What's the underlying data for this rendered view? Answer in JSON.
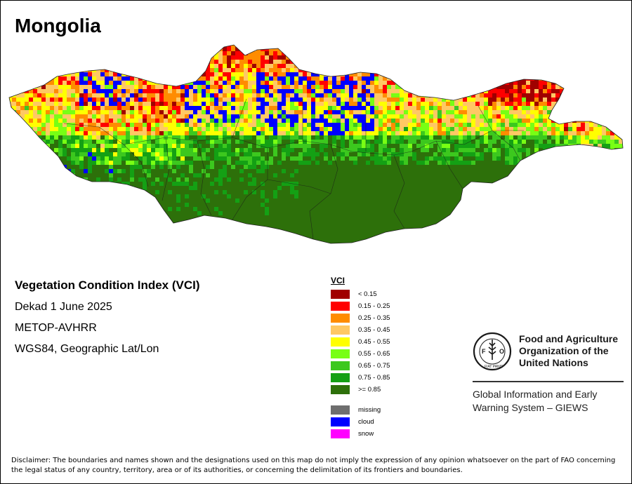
{
  "map": {
    "title": "Mongolia",
    "index_name": "Vegetation Condition Index (VCI)",
    "period": "Dekad 1 June 2025",
    "sensor": "METOP-AVHRR",
    "projection": "WGS84, Geographic Lat/Lon"
  },
  "legend": {
    "title": "VCI",
    "classes": [
      {
        "label": "< 0.15",
        "color": "#a00000"
      },
      {
        "label": "0.15 - 0.25",
        "color": "#ff0000"
      },
      {
        "label": "0.25 - 0.35",
        "color": "#ff8c00"
      },
      {
        "label": "0.35 - 0.45",
        "color": "#ffc864"
      },
      {
        "label": "0.45 - 0.55",
        "color": "#ffff00"
      },
      {
        "label": "0.55 - 0.65",
        "color": "#78ff14"
      },
      {
        "label": "0.65 - 0.75",
        "color": "#3cc81e"
      },
      {
        "label": "0.75 - 0.85",
        "color": "#14a014"
      },
      {
        "label": ">= 0.85",
        "color": "#2d700a"
      }
    ],
    "special": [
      {
        "label": "missing",
        "color": "#6e6e6e"
      },
      {
        "label": "cloud",
        "color": "#0000ff"
      },
      {
        "label": "snow",
        "color": "#ff00ff"
      }
    ]
  },
  "fao": {
    "name_line1": "Food and Agriculture",
    "name_line2": "Organization of the",
    "name_line3": "United Nations",
    "logo_text": "FAO",
    "logo_motto": "FIAT PANIS",
    "giews_line1": "Global Information and Early",
    "giews_line2": "Warning System – GIEWS"
  },
  "disclaimer": "Disclaimer: The boundaries and names shown and the designations used on this map do not imply the expression of any opinion whatsoever on the part of FAO concerning the legal status of any country, territory, area or of its authorities, or concerning the delimitation of its frontiers and boundaries."
}
